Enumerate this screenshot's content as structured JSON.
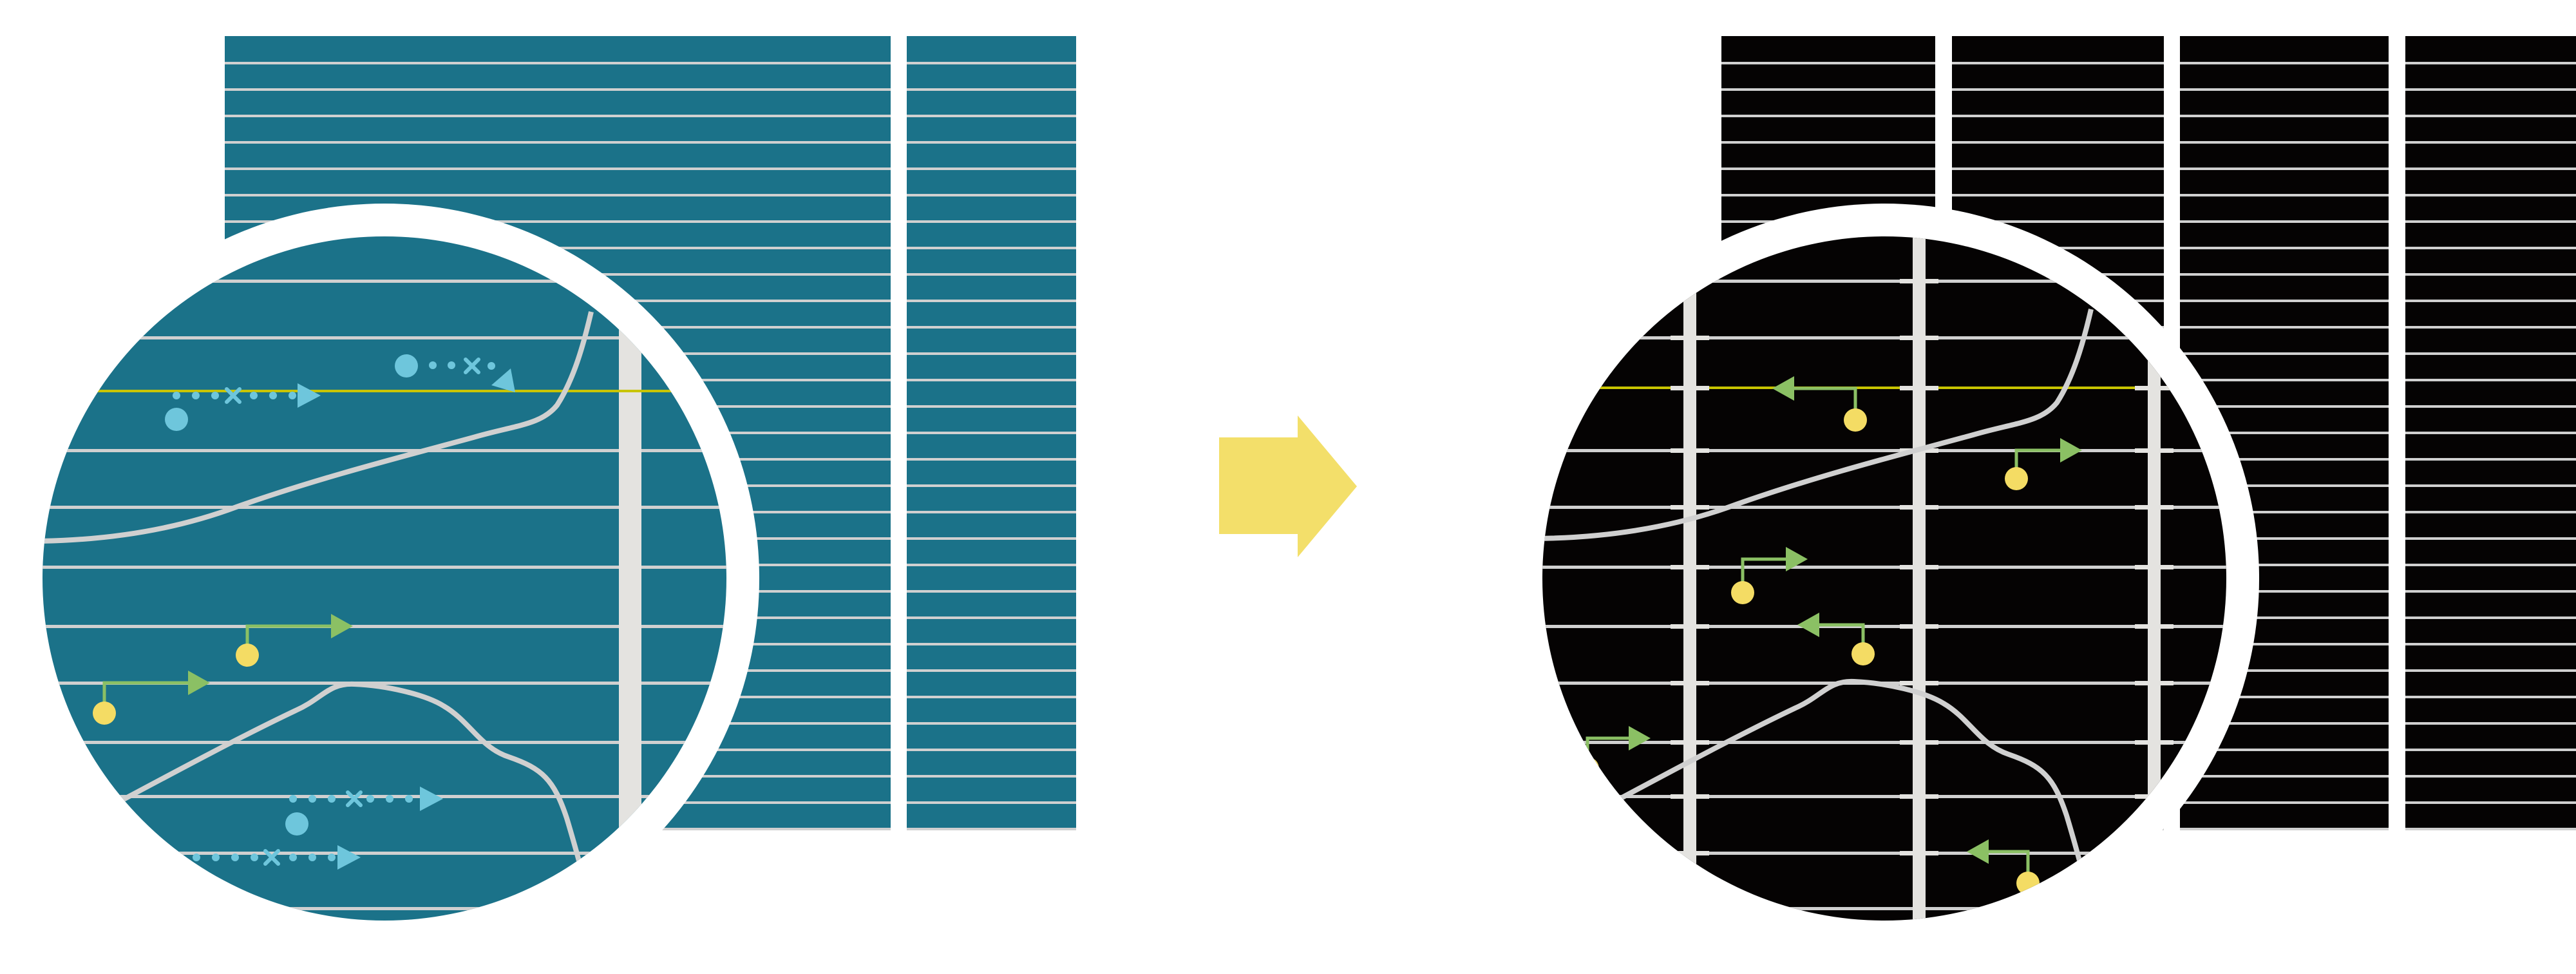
{
  "colors": {
    "before_background": "#1b7289",
    "after_background": "#050303",
    "grid_line": "#d0d0d0",
    "bar": "#e4e3e0",
    "highlight_line": "#c8c400",
    "blue_marker": "#6ec6dc",
    "yellow_marker": "#f4dc64",
    "green_arrow": "#8bc064",
    "transition_arrow": "#f3df6a"
  },
  "panels": [
    {
      "id": "before",
      "theme": "teal"
    },
    {
      "id": "after",
      "theme": "black"
    }
  ]
}
